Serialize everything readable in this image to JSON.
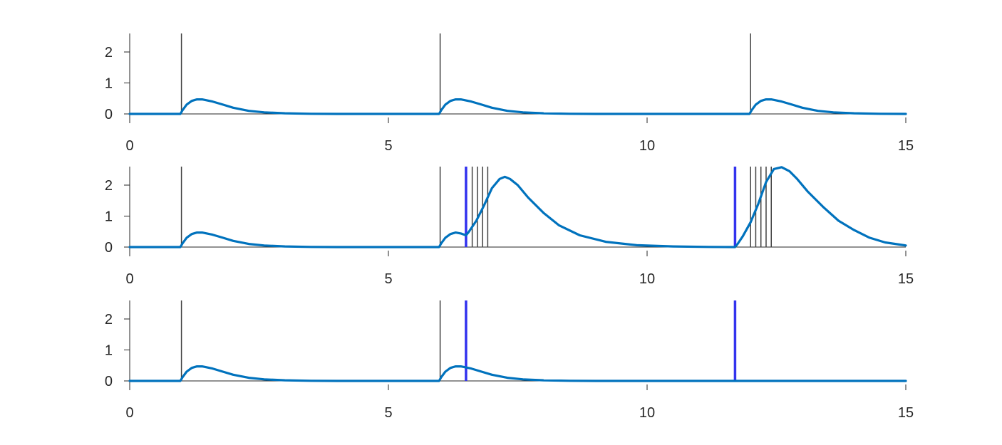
{
  "chart_data": [
    {
      "type": "line",
      "xlim": [
        0,
        15
      ],
      "ylim": [
        -0.3,
        2.6
      ],
      "x_ticks": [
        "0",
        "5",
        "10",
        "15"
      ],
      "y_ticks": [
        "0",
        "1",
        "2"
      ],
      "events": [
        1.0,
        6.0,
        12.0
      ],
      "blue_events": [],
      "curve": {
        "color": "#0072BD",
        "points": [
          [
            0,
            0
          ],
          [
            0.98,
            0
          ],
          [
            1.02,
            0.12
          ],
          [
            1.1,
            0.3
          ],
          [
            1.2,
            0.42
          ],
          [
            1.3,
            0.47
          ],
          [
            1.4,
            0.47
          ],
          [
            1.6,
            0.4
          ],
          [
            1.8,
            0.3
          ],
          [
            2.0,
            0.2
          ],
          [
            2.3,
            0.1
          ],
          [
            2.6,
            0.05
          ],
          [
            3.0,
            0.02
          ],
          [
            3.5,
            0.005
          ],
          [
            4.0,
            0
          ],
          [
            5.98,
            0
          ],
          [
            6.02,
            0.12
          ],
          [
            6.1,
            0.3
          ],
          [
            6.2,
            0.42
          ],
          [
            6.3,
            0.47
          ],
          [
            6.4,
            0.47
          ],
          [
            6.6,
            0.4
          ],
          [
            6.8,
            0.3
          ],
          [
            7.0,
            0.2
          ],
          [
            7.3,
            0.1
          ],
          [
            7.6,
            0.05
          ],
          [
            8.0,
            0.02
          ],
          [
            8.5,
            0.005
          ],
          [
            9.0,
            0
          ],
          [
            11.98,
            0
          ],
          [
            12.02,
            0.12
          ],
          [
            12.1,
            0.3
          ],
          [
            12.2,
            0.42
          ],
          [
            12.3,
            0.47
          ],
          [
            12.4,
            0.47
          ],
          [
            12.6,
            0.4
          ],
          [
            12.8,
            0.3
          ],
          [
            13.0,
            0.2
          ],
          [
            13.3,
            0.1
          ],
          [
            13.6,
            0.05
          ],
          [
            14.0,
            0.02
          ],
          [
            14.5,
            0.005
          ],
          [
            15.0,
            0
          ]
        ]
      }
    },
    {
      "type": "line",
      "xlim": [
        0,
        15
      ],
      "ylim": [
        -0.3,
        2.6
      ],
      "x_ticks": [
        "0",
        "5",
        "10",
        "15"
      ],
      "y_ticks": [
        "0",
        "1",
        "2"
      ],
      "events": [
        1.0,
        6.0,
        6.62,
        6.72,
        6.82,
        6.92,
        12.0,
        12.1,
        12.2,
        12.3,
        12.4
      ],
      "blue_events": [
        6.5,
        11.7
      ],
      "curve": {
        "color": "#0072BD",
        "points": [
          [
            0,
            0
          ],
          [
            0.98,
            0
          ],
          [
            1.02,
            0.12
          ],
          [
            1.1,
            0.3
          ],
          [
            1.2,
            0.42
          ],
          [
            1.3,
            0.47
          ],
          [
            1.4,
            0.47
          ],
          [
            1.6,
            0.4
          ],
          [
            1.8,
            0.3
          ],
          [
            2.0,
            0.2
          ],
          [
            2.3,
            0.1
          ],
          [
            2.6,
            0.05
          ],
          [
            3.0,
            0.02
          ],
          [
            3.5,
            0.005
          ],
          [
            4.0,
            0
          ],
          [
            5.98,
            0
          ],
          [
            6.02,
            0.12
          ],
          [
            6.1,
            0.3
          ],
          [
            6.2,
            0.42
          ],
          [
            6.3,
            0.47
          ],
          [
            6.4,
            0.44
          ],
          [
            6.5,
            0.38
          ],
          [
            6.55,
            0.48
          ],
          [
            6.7,
            0.85
          ],
          [
            6.85,
            1.35
          ],
          [
            7.0,
            1.9
          ],
          [
            7.15,
            2.2
          ],
          [
            7.25,
            2.27
          ],
          [
            7.35,
            2.2
          ],
          [
            7.5,
            2.0
          ],
          [
            7.7,
            1.6
          ],
          [
            8.0,
            1.1
          ],
          [
            8.3,
            0.7
          ],
          [
            8.7,
            0.38
          ],
          [
            9.2,
            0.17
          ],
          [
            9.8,
            0.06
          ],
          [
            10.5,
            0.02
          ],
          [
            11.2,
            0.005
          ],
          [
            11.7,
            0
          ],
          [
            11.75,
            0.1
          ],
          [
            11.85,
            0.35
          ],
          [
            12.0,
            0.8
          ],
          [
            12.15,
            1.4
          ],
          [
            12.3,
            2.1
          ],
          [
            12.45,
            2.52
          ],
          [
            12.6,
            2.58
          ],
          [
            12.75,
            2.45
          ],
          [
            12.9,
            2.2
          ],
          [
            13.1,
            1.8
          ],
          [
            13.4,
            1.3
          ],
          [
            13.7,
            0.85
          ],
          [
            14.0,
            0.55
          ],
          [
            14.3,
            0.3
          ],
          [
            14.6,
            0.15
          ],
          [
            15.0,
            0.05
          ]
        ]
      }
    },
    {
      "type": "line",
      "xlim": [
        0,
        15
      ],
      "ylim": [
        -0.3,
        2.6
      ],
      "x_ticks": [
        "0",
        "5",
        "10",
        "15"
      ],
      "y_ticks": [
        "0",
        "1",
        "2"
      ],
      "events": [
        1.0,
        6.0
      ],
      "blue_events": [
        6.5,
        11.7
      ],
      "curve": {
        "color": "#0072BD",
        "points": [
          [
            0,
            0
          ],
          [
            0.98,
            0
          ],
          [
            1.02,
            0.12
          ],
          [
            1.1,
            0.3
          ],
          [
            1.2,
            0.42
          ],
          [
            1.3,
            0.47
          ],
          [
            1.4,
            0.47
          ],
          [
            1.6,
            0.4
          ],
          [
            1.8,
            0.3
          ],
          [
            2.0,
            0.2
          ],
          [
            2.3,
            0.1
          ],
          [
            2.6,
            0.05
          ],
          [
            3.0,
            0.02
          ],
          [
            3.5,
            0.005
          ],
          [
            4.0,
            0
          ],
          [
            5.98,
            0
          ],
          [
            6.02,
            0.12
          ],
          [
            6.1,
            0.3
          ],
          [
            6.2,
            0.42
          ],
          [
            6.3,
            0.47
          ],
          [
            6.4,
            0.47
          ],
          [
            6.6,
            0.4
          ],
          [
            6.8,
            0.3
          ],
          [
            7.0,
            0.2
          ],
          [
            7.3,
            0.1
          ],
          [
            7.6,
            0.05
          ],
          [
            8.0,
            0.02
          ],
          [
            8.5,
            0.005
          ],
          [
            9.0,
            0
          ],
          [
            15.0,
            0
          ]
        ]
      }
    }
  ],
  "colors": {
    "event_line": "#404040",
    "blue_event": "#3333ee",
    "axis": "#262626"
  }
}
